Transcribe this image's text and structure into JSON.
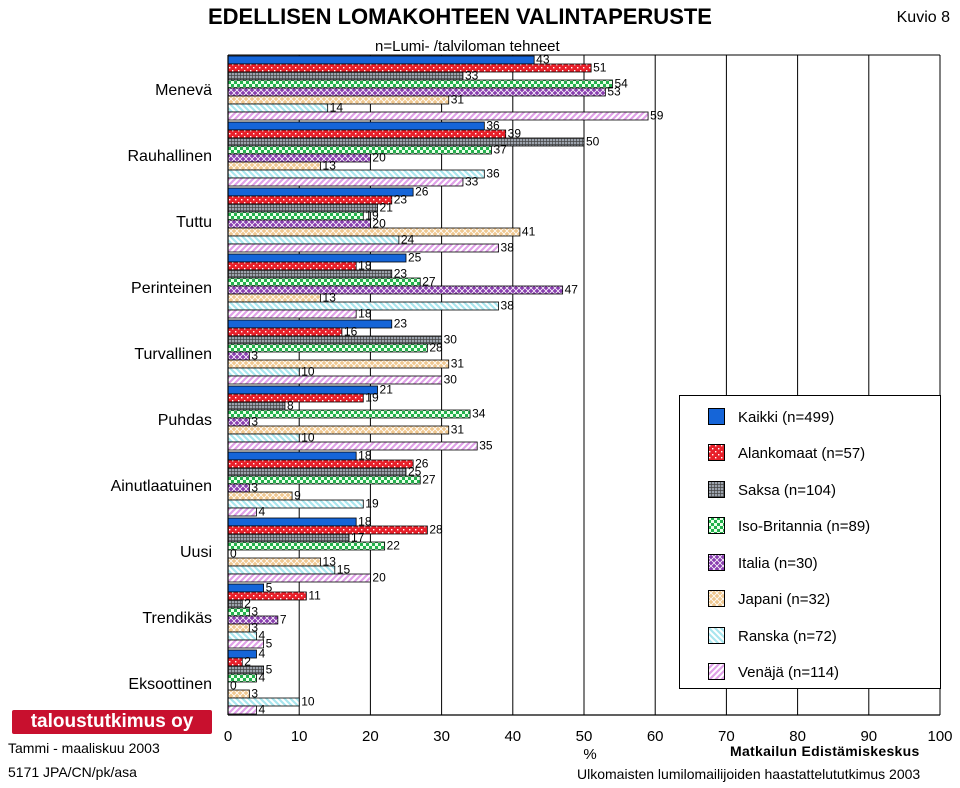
{
  "header": {
    "title": "EDELLISEN LOMAKOHTEEN VALINTAPERUSTE",
    "subtitle": "n=Lumi- /talviloman tehneet",
    "figure_number": "Kuvio 8"
  },
  "footer": {
    "logo_text": "taloustutkimus oy",
    "date": "Tammi - maaliskuu 2003",
    "code": "5171 JPA/CN/pk/asa",
    "organization": "Matkailun Edistämiskeskus",
    "source": "Ulkomaisten lumilomailijoiden haastattelututkimus 2003"
  },
  "colors": {
    "Kaikki": "#1565d8",
    "Alankomaat": "#e8202a",
    "Saksa": "#9ca3ad",
    "Iso-Britannia": "#22b24c",
    "Italia": "#8a3fb0",
    "Japani": "#f0c890",
    "Ranska": "#a8e6ee",
    "Venaja": "#e0a0e8"
  },
  "chart_data": {
    "type": "bar",
    "orientation": "horizontal",
    "title": "EDELLISEN LOMAKOHTEEN VALINTAPERUSTE",
    "subtitle": "n=Lumi- /talviloman tehneet",
    "xlabel": "%",
    "ylabel": "",
    "xlim": [
      0,
      100
    ],
    "xticks": [
      0,
      10,
      20,
      30,
      40,
      50,
      60,
      70,
      80,
      90,
      100
    ],
    "grid": "vertical",
    "legend_position": "right",
    "categories": [
      "Menevä",
      "Rauhallinen",
      "Tuttu",
      "Perinteinen",
      "Turvallinen",
      "Puhdas",
      "Ainutlaatuinen",
      "Uusi",
      "Trendikäs",
      "Eksoottinen"
    ],
    "series": [
      {
        "name": "Kaikki (n=499)",
        "key": "Kaikki",
        "pattern": "solid",
        "values": [
          43,
          36,
          26,
          25,
          23,
          21,
          18,
          18,
          5,
          4
        ]
      },
      {
        "name": "Alankomaat (n=57)",
        "key": "Alankomaat",
        "pattern": "dots",
        "values": [
          51,
          39,
          23,
          18,
          16,
          19,
          26,
          28,
          11,
          2
        ]
      },
      {
        "name": "Saksa (n=104)",
        "key": "Saksa",
        "pattern": "grid",
        "values": [
          33,
          50,
          21,
          23,
          30,
          8,
          25,
          17,
          2,
          5
        ]
      },
      {
        "name": "Iso-Britannia (n=89)",
        "key": "Iso-Britannia",
        "pattern": "checker",
        "values": [
          54,
          37,
          19,
          27,
          28,
          34,
          27,
          22,
          3,
          4
        ]
      },
      {
        "name": "Italia (n=30)",
        "key": "Italia",
        "pattern": "diamond",
        "values": [
          53,
          20,
          20,
          47,
          3,
          3,
          3,
          0,
          7,
          0
        ]
      },
      {
        "name": "Japani (n=32)",
        "key": "Japani",
        "pattern": "crosshatch",
        "values": [
          31,
          13,
          41,
          13,
          31,
          31,
          9,
          13,
          3,
          3
        ]
      },
      {
        "name": "Ranska (n=72)",
        "key": "Ranska",
        "pattern": "backslash",
        "values": [
          14,
          36,
          24,
          38,
          10,
          10,
          19,
          15,
          4,
          10
        ]
      },
      {
        "name": "Venäjä (n=114)",
        "key": "Venaja",
        "pattern": "slash",
        "values": [
          59,
          33,
          38,
          18,
          30,
          35,
          4,
          20,
          5,
          4
        ]
      }
    ]
  }
}
